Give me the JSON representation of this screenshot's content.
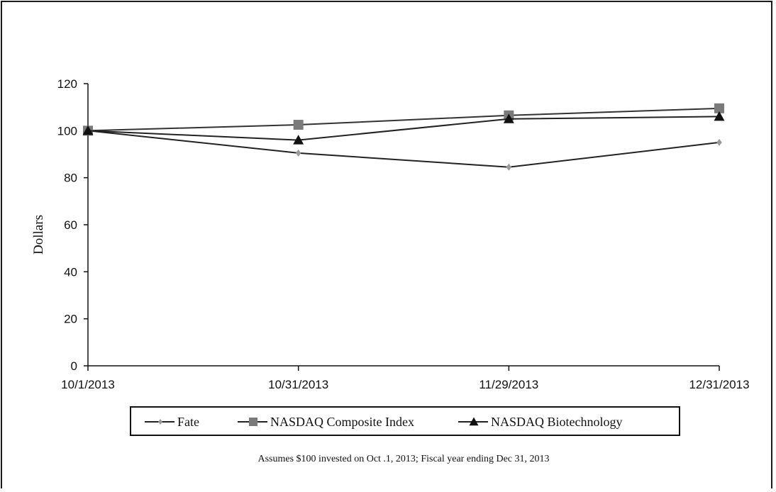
{
  "chart_data": {
    "type": "line",
    "categories": [
      "10/1/2013",
      "10/31/2013",
      "11/29/2013",
      "12/31/2013"
    ],
    "series": [
      {
        "name": "Fate",
        "values": [
          100,
          90.5,
          84.5,
          95
        ],
        "color": "#9a9a9a",
        "marker": "diamond"
      },
      {
        "name": "NASDAQ Composite Index",
        "values": [
          100,
          102.5,
          106.5,
          109.5
        ],
        "color": "#7a7a7a",
        "marker": "square"
      },
      {
        "name": "NASDAQ Biotechnology",
        "values": [
          100,
          96,
          105,
          106
        ],
        "color": "#111111",
        "marker": "triangle"
      }
    ],
    "ylabel": "Dollars",
    "xlabel": "",
    "ylim": [
      0,
      120
    ],
    "yticks": [
      0,
      20,
      40,
      60,
      80,
      100,
      120
    ],
    "grid": false,
    "legend": "bottom",
    "footnote": "Assumes $100 invested on Oct .1, 2013; Fiscal year ending Dec 31, 2013"
  }
}
